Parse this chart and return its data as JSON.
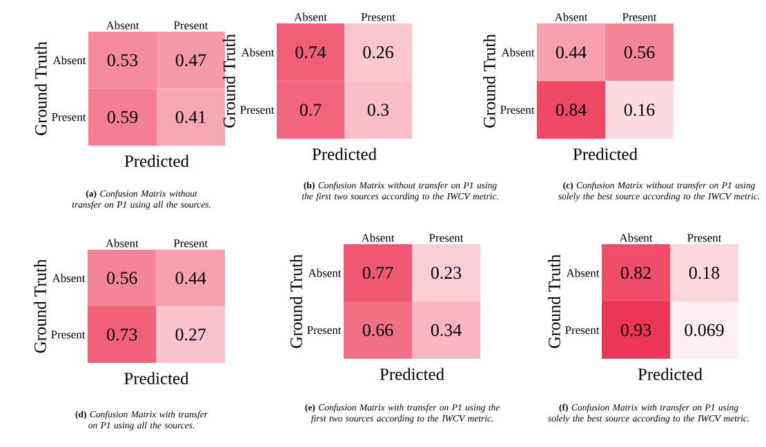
{
  "chart_data": [
    {
      "type": "heatmap",
      "categories": [
        "Absent",
        "Present"
      ],
      "y_categories": [
        "Absent",
        "Present"
      ],
      "xlabel": "Predicted",
      "ylabel": "Ground Truth",
      "cells": [
        [
          0.53,
          0.47
        ],
        [
          0.59,
          0.41
        ]
      ],
      "data_labels": true,
      "annotations": [
        "**(a)** *Confusion Matrix without transfer on P1 using all the sources.*"
      ]
    },
    {
      "type": "heatmap",
      "categories": [
        "Absent",
        "Present"
      ],
      "y_categories": [
        "Absent",
        "Present"
      ],
      "xlabel": "Predicted",
      "ylabel": "Ground Truth",
      "cells": [
        [
          0.74,
          0.26
        ],
        [
          0.7,
          0.3
        ]
      ],
      "data_labels": true,
      "annotations": [
        "**(b)** *Confusion Matrix without transfer on P1 using the first two sources according to the IWCV metric.*"
      ]
    },
    {
      "type": "heatmap",
      "categories": [
        "Absent",
        "Present"
      ],
      "y_categories": [
        "Absent",
        "Present"
      ],
      "xlabel": "Predicted",
      "ylabel": "Ground Truth",
      "cells": [
        [
          0.44,
          0.56
        ],
        [
          0.84,
          0.16
        ]
      ],
      "data_labels": true,
      "annotations": [
        "**(c)** *Confusion Matrix without transfer on P1 using solely the best source according to the IWCV metric.*"
      ]
    },
    {
      "type": "heatmap",
      "categories": [
        "Absent",
        "Present"
      ],
      "y_categories": [
        "Absent",
        "Present"
      ],
      "xlabel": "Predicted",
      "ylabel": "Ground Truth",
      "cells": [
        [
          0.56,
          0.44
        ],
        [
          0.73,
          0.27
        ]
      ],
      "data_labels": true,
      "annotations": [
        "**(d)** *Confusion Matrix with transfer on P1 using all the sources.*"
      ]
    },
    {
      "type": "heatmap",
      "categories": [
        "Absent",
        "Present"
      ],
      "y_categories": [
        "Absent",
        "Present"
      ],
      "xlabel": "Predicted",
      "ylabel": "Ground Truth",
      "cells": [
        [
          0.77,
          0.23
        ],
        [
          0.66,
          0.34
        ]
      ],
      "data_labels": true,
      "annotations": [
        "**(e)** *Confusion Matrix with transfer on P1 using the first two sources according to the IWCV metric.*"
      ]
    },
    {
      "type": "heatmap",
      "categories": [
        "Absent",
        "Present"
      ],
      "y_categories": [
        "Absent",
        "Present"
      ],
      "xlabel": "Predicted",
      "ylabel": "Ground Truth",
      "cells": [
        [
          0.82,
          0.18
        ],
        [
          0.93,
          0.069
        ]
      ],
      "data_labels": true,
      "annotations": [
        "**(f)** *Confusion Matrix with transfer on P1 using solely the best source according to the IWCV metric.*"
      ]
    }
  ]
}
